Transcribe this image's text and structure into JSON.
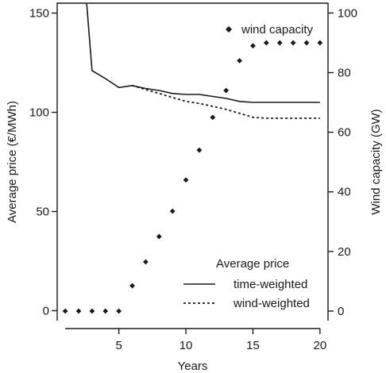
{
  "chart_data": {
    "type": "line",
    "x_axis": {
      "label": "Years",
      "range": [
        0.4,
        20.6
      ],
      "ticks": [
        5,
        10,
        15,
        20
      ]
    },
    "y_left": {
      "label": "Average price (€/MWh)",
      "range": [
        -5,
        155
      ],
      "ticks": [
        0,
        50,
        100,
        150
      ]
    },
    "y_right": {
      "label": "Wind capacity (GW)",
      "range": [
        -3.2,
        103.3
      ],
      "ticks": [
        0,
        20,
        40,
        60,
        80,
        100
      ]
    },
    "x": [
      1,
      2,
      3,
      4,
      5,
      6,
      7,
      8,
      9,
      10,
      11,
      12,
      13,
      14,
      15,
      16,
      17,
      18,
      19,
      20
    ],
    "series": [
      {
        "name": "time-weighted",
        "axis": "left",
        "style": "solid",
        "x": [
          2.6,
          3,
          4,
          5,
          6,
          7,
          8,
          9,
          10,
          11,
          12,
          13,
          14,
          15,
          16,
          17,
          18,
          19,
          20
        ],
        "values": [
          155,
          121,
          117,
          112.5,
          113.5,
          112,
          111,
          109.5,
          109,
          109,
          108,
          107,
          105.5,
          105,
          105,
          105,
          105,
          105,
          105
        ]
      },
      {
        "name": "wind-weighted",
        "axis": "left",
        "style": "dotted",
        "x": [
          6,
          7,
          8,
          9,
          10,
          11,
          12,
          13,
          14,
          15,
          16,
          17,
          18,
          19,
          20
        ],
        "values": [
          113.5,
          111.5,
          109.5,
          107.5,
          105.5,
          104.5,
          103,
          101.5,
          99.5,
          97.5,
          97,
          97,
          97,
          97,
          97
        ]
      },
      {
        "name": "wind capacity",
        "axis": "right",
        "style": "diamond-points",
        "values": [
          0,
          0,
          0,
          0,
          0,
          8.5,
          16.5,
          25,
          33.5,
          44,
          54,
          65,
          74,
          84,
          89,
          90,
          90,
          90,
          90,
          90
        ]
      }
    ],
    "legend": {
      "points_label": "wind capacity",
      "lines_title": "Average price",
      "line_labels": [
        "time-weighted",
        "wind-weighted"
      ]
    },
    "grid": false
  }
}
